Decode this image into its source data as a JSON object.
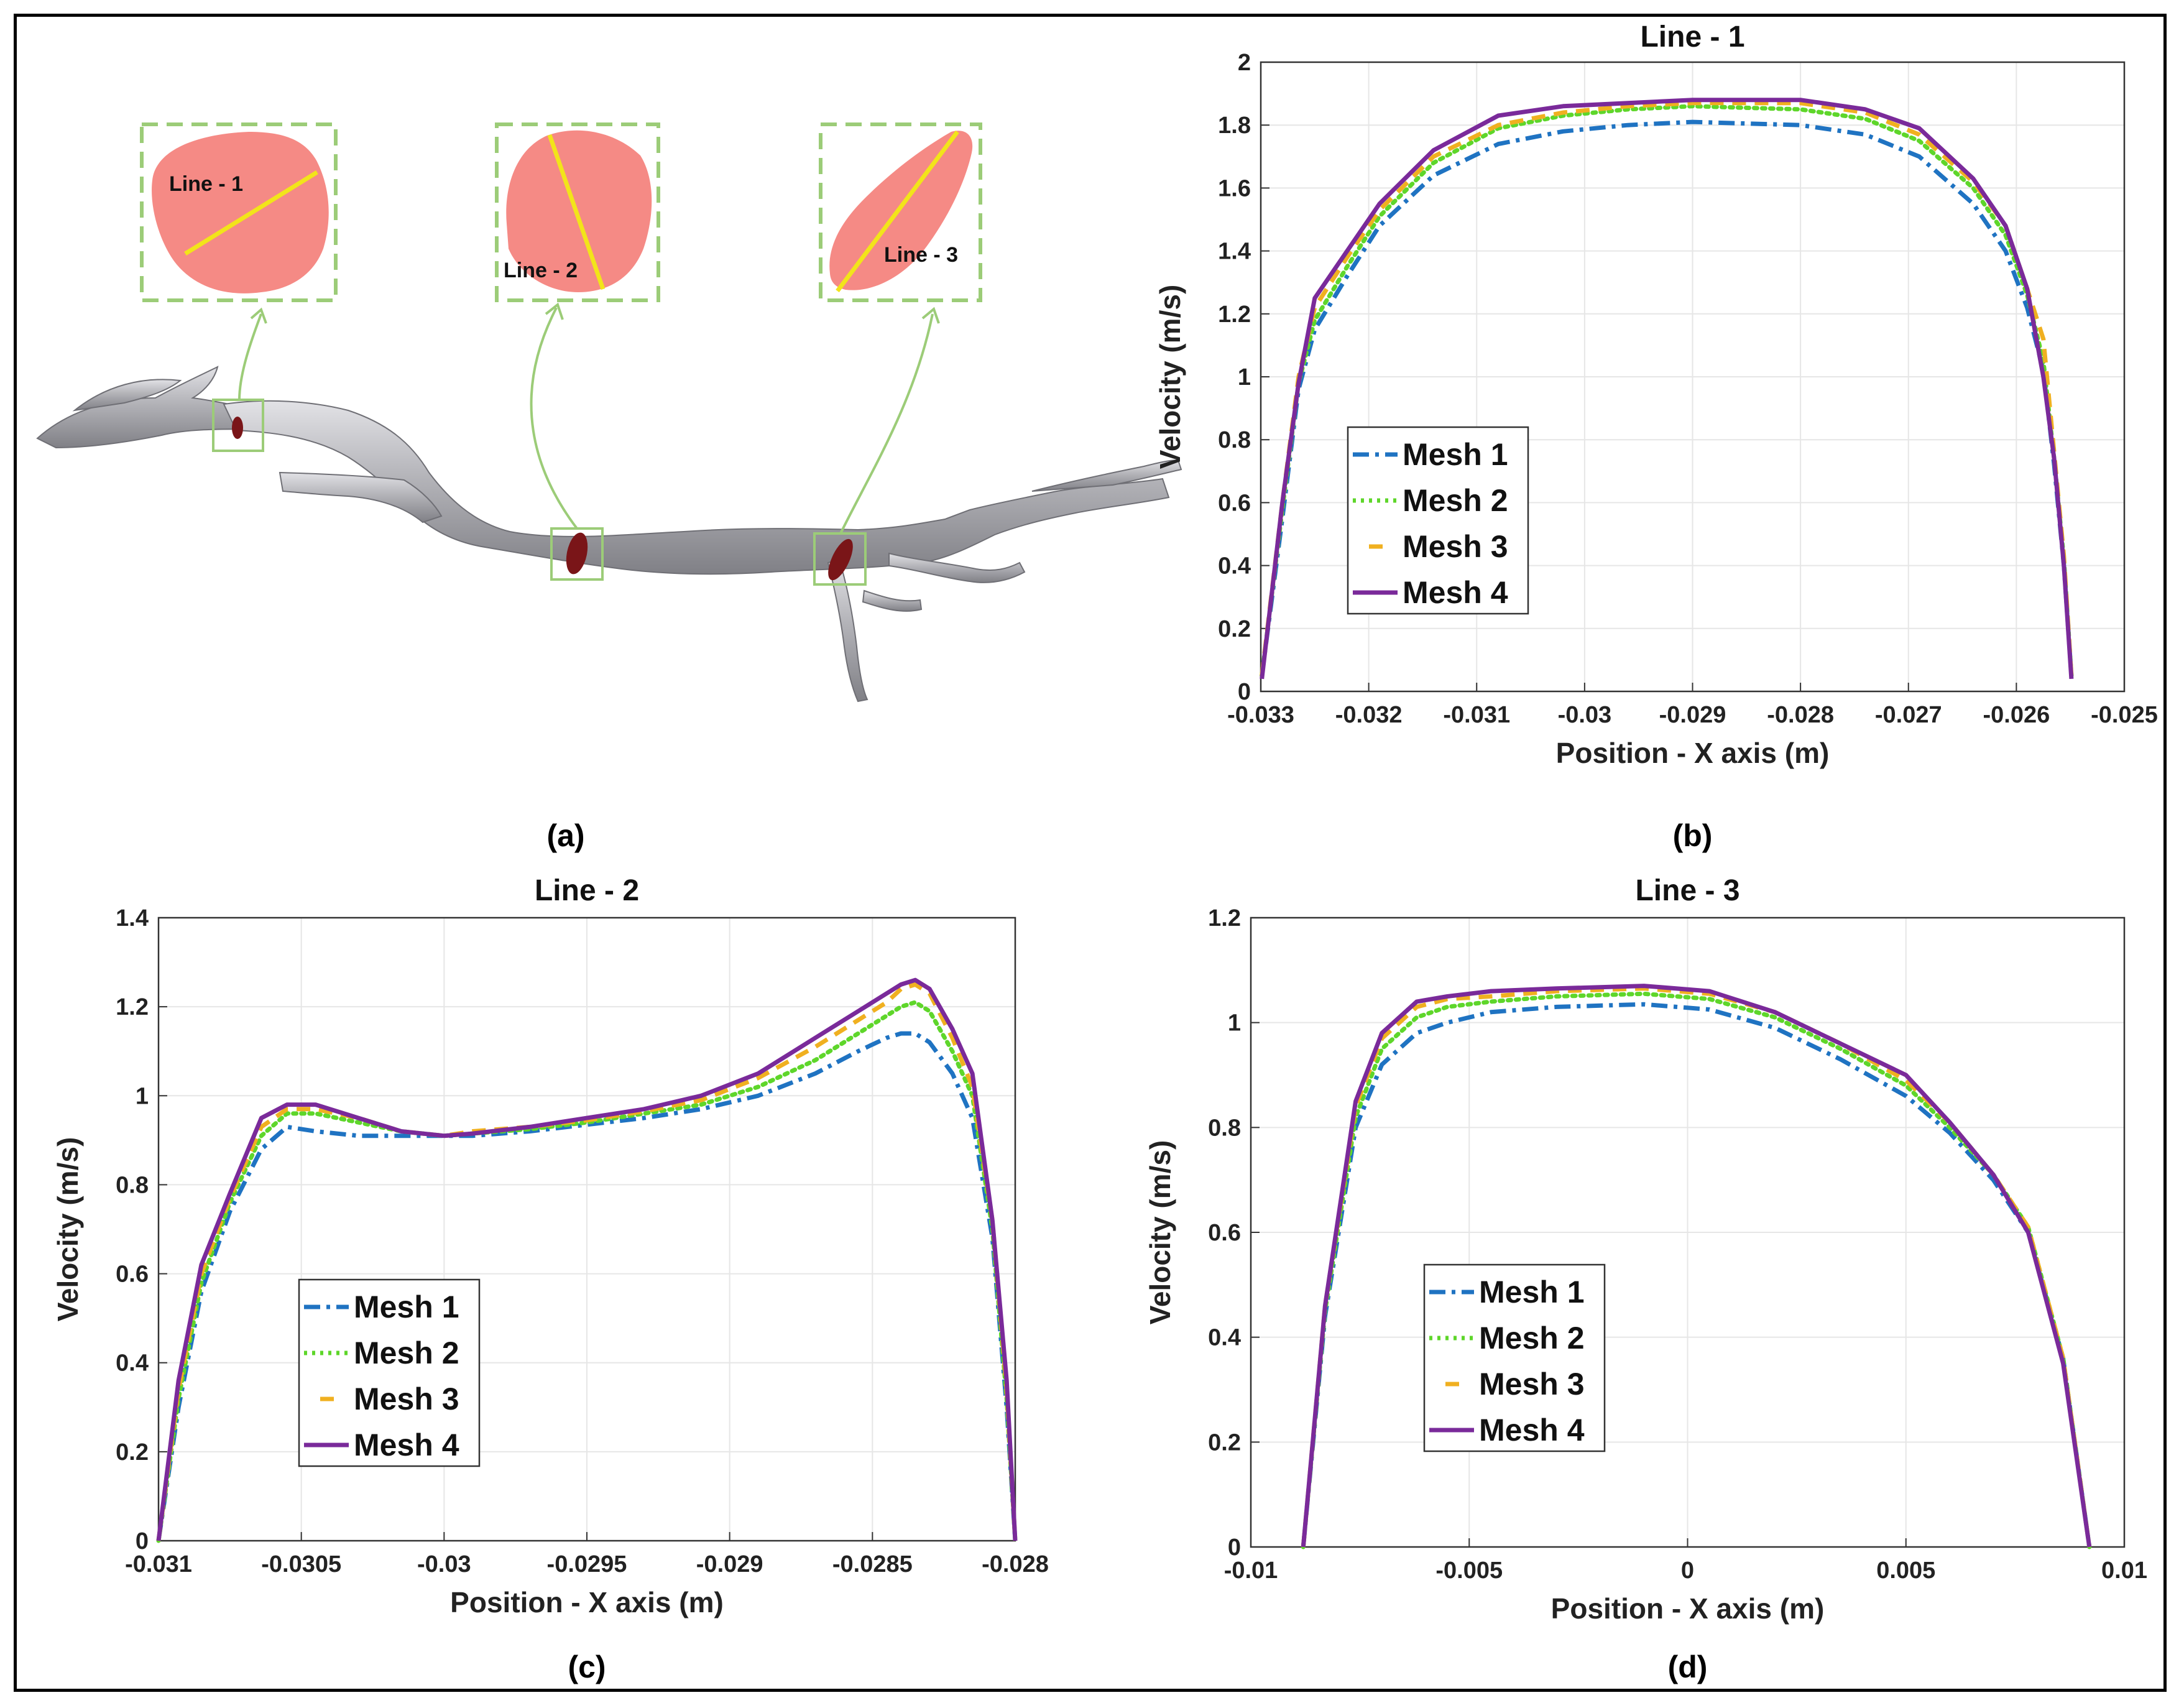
{
  "colors": {
    "mesh1": "#1f73c2",
    "mesh2": "#5ed62a",
    "mesh3": "#f0b020",
    "mesh4": "#7a2a9a",
    "section_fill": "#f58a85",
    "section_line": "#f2e41a",
    "inset_frame": "#9ccc78",
    "vessel": "#b9b9bd",
    "clot": "#7a1518"
  },
  "icons": [
    "vessel-geometry-icon",
    "cross-section-icon"
  ],
  "panel_a": {
    "caption": "(a)",
    "insets": [
      {
        "label": "Line - 1"
      },
      {
        "label": "Line - 2"
      },
      {
        "label": "Line - 3"
      }
    ]
  },
  "chart_data": [
    {
      "type": "line",
      "panel": "(b)",
      "title": "Line - 1",
      "xlabel": "Position - X axis (m)",
      "ylabel": "Velocity (m/s)",
      "xlim": [
        -0.033,
        -0.025
      ],
      "ylim": [
        0,
        2
      ],
      "xticks": [
        -0.033,
        -0.032,
        -0.031,
        -0.03,
        -0.029,
        -0.028,
        -0.027,
        -0.026,
        -0.025
      ],
      "xticklabels": [
        "-0.033",
        "-0.032",
        "-0.031",
        "-0.03",
        "-0.029",
        "-0.028",
        "-0.027",
        "-0.026",
        "-0.025"
      ],
      "yticks": [
        0,
        0.2,
        0.4,
        0.6,
        0.8,
        1,
        1.2,
        1.4,
        1.6,
        1.8,
        2
      ],
      "yticklabels": [
        "0",
        "0.2",
        "0.4",
        "0.6",
        "0.8",
        "1",
        "1.2",
        "1.4",
        "1.6",
        "1.8",
        "2"
      ],
      "grid": true,
      "legend_position": "middle-left",
      "series": [
        {
          "name": "Mesh 1",
          "style": "dashdot",
          "x": [
            -0.03299,
            -0.0328,
            -0.03265,
            -0.0325,
            -0.0322,
            -0.0319,
            -0.0314,
            -0.0308,
            -0.0302,
            -0.0296,
            -0.029,
            -0.028,
            -0.0274,
            -0.0269,
            -0.0264,
            -0.0261,
            -0.0259,
            -0.02575,
            -0.02565,
            -0.02556,
            -0.02549
          ],
          "y": [
            0.05,
            0.55,
            0.96,
            1.15,
            1.32,
            1.48,
            1.64,
            1.74,
            1.78,
            1.8,
            1.81,
            1.8,
            1.77,
            1.7,
            1.55,
            1.4,
            1.22,
            1.02,
            0.72,
            0.4,
            0.05
          ]
        },
        {
          "name": "Mesh 2",
          "style": "dotted",
          "x": [
            -0.03299,
            -0.0328,
            -0.03265,
            -0.0325,
            -0.0322,
            -0.0319,
            -0.0314,
            -0.0308,
            -0.0302,
            -0.0296,
            -0.029,
            -0.028,
            -0.0274,
            -0.0269,
            -0.0264,
            -0.0261,
            -0.0259,
            -0.02575,
            -0.02565,
            -0.02556,
            -0.02549
          ],
          "y": [
            0.05,
            0.58,
            0.98,
            1.18,
            1.35,
            1.51,
            1.68,
            1.79,
            1.83,
            1.85,
            1.86,
            1.85,
            1.82,
            1.75,
            1.6,
            1.45,
            1.26,
            1.05,
            0.74,
            0.42,
            0.05
          ]
        },
        {
          "name": "Mesh 3",
          "style": "dashed",
          "x": [
            -0.03299,
            -0.0328,
            -0.03265,
            -0.0325,
            -0.0322,
            -0.0319,
            -0.0314,
            -0.0308,
            -0.0302,
            -0.0296,
            -0.029,
            -0.028,
            -0.0274,
            -0.0269,
            -0.0264,
            -0.0261,
            -0.0259,
            -0.02575,
            -0.02565,
            -0.02556,
            -0.02549
          ],
          "y": [
            0.05,
            0.6,
            1.0,
            1.22,
            1.38,
            1.53,
            1.7,
            1.8,
            1.84,
            1.86,
            1.87,
            1.87,
            1.84,
            1.77,
            1.62,
            1.48,
            1.28,
            1.12,
            0.76,
            0.43,
            0.05
          ]
        },
        {
          "name": "Mesh 4",
          "style": "solid",
          "x": [
            -0.03299,
            -0.0328,
            -0.03265,
            -0.0325,
            -0.0322,
            -0.0319,
            -0.0314,
            -0.0308,
            -0.0302,
            -0.0296,
            -0.029,
            -0.028,
            -0.0274,
            -0.0269,
            -0.0264,
            -0.0261,
            -0.0259,
            -0.02575,
            -0.02565,
            -0.02556,
            -0.02549
          ],
          "y": [
            0.04,
            0.6,
            0.98,
            1.25,
            1.4,
            1.55,
            1.72,
            1.83,
            1.86,
            1.87,
            1.88,
            1.88,
            1.85,
            1.79,
            1.63,
            1.48,
            1.28,
            1.0,
            0.74,
            0.4,
            0.04
          ]
        }
      ]
    },
    {
      "type": "line",
      "panel": "(c)",
      "title": "Line - 2",
      "xlabel": "Position - X axis (m)",
      "ylabel": "Velocity (m/s)",
      "xlim": [
        -0.031,
        -0.028
      ],
      "ylim": [
        0,
        1.4
      ],
      "xticks": [
        -0.031,
        -0.0305,
        -0.03,
        -0.0295,
        -0.029,
        -0.0285,
        -0.028
      ],
      "xticklabels": [
        "-0.031",
        "-0.0305",
        "-0.03",
        "-0.0295",
        "-0.029",
        "-0.0285",
        "-0.028"
      ],
      "yticks": [
        0,
        0.2,
        0.4,
        0.6,
        0.8,
        1,
        1.2,
        1.4
      ],
      "yticklabels": [
        "0",
        "0.2",
        "0.4",
        "0.6",
        "0.8",
        "1",
        "1.2",
        "1.4"
      ],
      "grid": true,
      "legend_position": "bottom-left",
      "series": [
        {
          "name": "Mesh 1",
          "style": "dashdot",
          "x": [
            -0.031,
            -0.03093,
            -0.03085,
            -0.03075,
            -0.03064,
            -0.03055,
            -0.03045,
            -0.0303,
            -0.03015,
            -0.03,
            -0.0299,
            -0.0297,
            -0.0295,
            -0.0293,
            -0.0291,
            -0.0289,
            -0.0287,
            -0.02855,
            -0.02845,
            -0.0284,
            -0.02835,
            -0.0283,
            -0.02822,
            -0.02815,
            -0.02808,
            -0.02803,
            -0.028
          ],
          "y": [
            0.0,
            0.3,
            0.56,
            0.74,
            0.88,
            0.93,
            0.92,
            0.91,
            0.91,
            0.91,
            0.91,
            0.92,
            0.935,
            0.95,
            0.97,
            1.0,
            1.05,
            1.1,
            1.13,
            1.14,
            1.14,
            1.12,
            1.05,
            0.95,
            0.68,
            0.3,
            0.0
          ]
        },
        {
          "name": "Mesh 2",
          "style": "dotted",
          "x": [
            -0.031,
            -0.03093,
            -0.03085,
            -0.03075,
            -0.03064,
            -0.03055,
            -0.03045,
            -0.0303,
            -0.03015,
            -0.03,
            -0.0299,
            -0.0297,
            -0.0295,
            -0.0293,
            -0.0291,
            -0.0289,
            -0.0287,
            -0.02855,
            -0.02845,
            -0.0284,
            -0.02835,
            -0.0283,
            -0.02822,
            -0.02815,
            -0.02808,
            -0.02803,
            -0.028
          ],
          "y": [
            0.0,
            0.32,
            0.58,
            0.76,
            0.91,
            0.96,
            0.96,
            0.94,
            0.92,
            0.91,
            0.915,
            0.925,
            0.94,
            0.96,
            0.98,
            1.02,
            1.08,
            1.14,
            1.18,
            1.2,
            1.21,
            1.19,
            1.1,
            1.0,
            0.7,
            0.32,
            0.0
          ]
        },
        {
          "name": "Mesh 3",
          "style": "dashed",
          "x": [
            -0.031,
            -0.03093,
            -0.03085,
            -0.03075,
            -0.03064,
            -0.03055,
            -0.03045,
            -0.0303,
            -0.03015,
            -0.03,
            -0.0299,
            -0.0297,
            -0.0295,
            -0.0293,
            -0.0291,
            -0.0289,
            -0.0287,
            -0.02855,
            -0.02845,
            -0.0284,
            -0.02835,
            -0.0283,
            -0.02822,
            -0.02815,
            -0.02808,
            -0.02803,
            -0.028
          ],
          "y": [
            0.0,
            0.34,
            0.6,
            0.77,
            0.93,
            0.97,
            0.97,
            0.95,
            0.92,
            0.91,
            0.92,
            0.93,
            0.945,
            0.965,
            0.99,
            1.04,
            1.11,
            1.17,
            1.21,
            1.24,
            1.25,
            1.23,
            1.13,
            1.02,
            0.72,
            0.34,
            0.0
          ]
        },
        {
          "name": "Mesh 4",
          "style": "solid",
          "x": [
            -0.031,
            -0.03093,
            -0.03085,
            -0.03075,
            -0.03064,
            -0.03055,
            -0.03045,
            -0.0303,
            -0.03015,
            -0.03,
            -0.0299,
            -0.0297,
            -0.0295,
            -0.0293,
            -0.0291,
            -0.0289,
            -0.0287,
            -0.02855,
            -0.02845,
            -0.0284,
            -0.02835,
            -0.0283,
            -0.02822,
            -0.02815,
            -0.02808,
            -0.02803,
            -0.028
          ],
          "y": [
            0.0,
            0.36,
            0.62,
            0.78,
            0.95,
            0.98,
            0.98,
            0.95,
            0.92,
            0.91,
            0.915,
            0.93,
            0.95,
            0.97,
            1.0,
            1.05,
            1.13,
            1.19,
            1.23,
            1.25,
            1.26,
            1.24,
            1.15,
            1.05,
            0.72,
            0.36,
            0.0
          ]
        }
      ]
    },
    {
      "type": "line",
      "panel": "(d)",
      "title": "Line - 3",
      "xlabel": "Position - X axis (m)",
      "ylabel": "Velocity (m/s)",
      "xlim": [
        -0.01,
        0.01
      ],
      "ylim": [
        0,
        1.2
      ],
      "xticks": [
        -0.01,
        -0.005,
        0,
        0.005,
        0.01
      ],
      "xticklabels": [
        "-0.01",
        "-0.005",
        "0",
        "0.005",
        "0.01"
      ],
      "yticks": [
        0,
        0.2,
        0.4,
        0.6,
        0.8,
        1,
        1.2
      ],
      "yticklabels": [
        "0",
        "0.2",
        "0.4",
        "0.6",
        "0.8",
        "1",
        "1.2"
      ],
      "grid": true,
      "legend_position": "bottom-left",
      "series": [
        {
          "name": "Mesh 1",
          "style": "dashdot",
          "x": [
            -0.0088,
            -0.0083,
            -0.0076,
            -0.007,
            -0.0062,
            -0.0055,
            -0.0045,
            -0.003,
            -0.001,
            0.0005,
            0.002,
            0.0035,
            0.005,
            0.006,
            0.007,
            0.0078,
            0.0086,
            0.0092
          ],
          "y": [
            0.0,
            0.44,
            0.8,
            0.92,
            0.98,
            1.0,
            1.02,
            1.03,
            1.035,
            1.025,
            0.99,
            0.93,
            0.86,
            0.79,
            0.7,
            0.6,
            0.36,
            0.0
          ]
        },
        {
          "name": "Mesh 2",
          "style": "dotted",
          "x": [
            -0.0088,
            -0.0083,
            -0.0076,
            -0.007,
            -0.0062,
            -0.0055,
            -0.0045,
            -0.003,
            -0.001,
            0.0005,
            0.002,
            0.0035,
            0.005,
            0.006,
            0.007,
            0.0078,
            0.0086,
            0.0092
          ],
          "y": [
            0.0,
            0.45,
            0.82,
            0.95,
            1.01,
            1.03,
            1.04,
            1.05,
            1.055,
            1.045,
            1.01,
            0.95,
            0.88,
            0.8,
            0.71,
            0.61,
            0.36,
            0.0
          ]
        },
        {
          "name": "Mesh 3",
          "style": "dashed",
          "x": [
            -0.0088,
            -0.0083,
            -0.0076,
            -0.007,
            -0.0062,
            -0.0055,
            -0.0045,
            -0.003,
            -0.001,
            0.0005,
            0.002,
            0.0035,
            0.005,
            0.006,
            0.007,
            0.0078,
            0.0086,
            0.0092
          ],
          "y": [
            0.0,
            0.46,
            0.84,
            0.97,
            1.03,
            1.045,
            1.05,
            1.06,
            1.065,
            1.055,
            1.02,
            0.96,
            0.89,
            0.81,
            0.71,
            0.61,
            0.36,
            0.0
          ]
        },
        {
          "name": "Mesh 4",
          "style": "solid",
          "x": [
            -0.0088,
            -0.0083,
            -0.0076,
            -0.007,
            -0.0062,
            -0.0055,
            -0.0045,
            -0.003,
            -0.001,
            0.0005,
            0.002,
            0.0035,
            0.005,
            0.006,
            0.007,
            0.0078,
            0.0086,
            0.0092
          ],
          "y": [
            0.0,
            0.46,
            0.85,
            0.98,
            1.04,
            1.05,
            1.06,
            1.065,
            1.07,
            1.06,
            1.02,
            0.96,
            0.9,
            0.81,
            0.71,
            0.6,
            0.35,
            0.0
          ]
        }
      ]
    }
  ]
}
